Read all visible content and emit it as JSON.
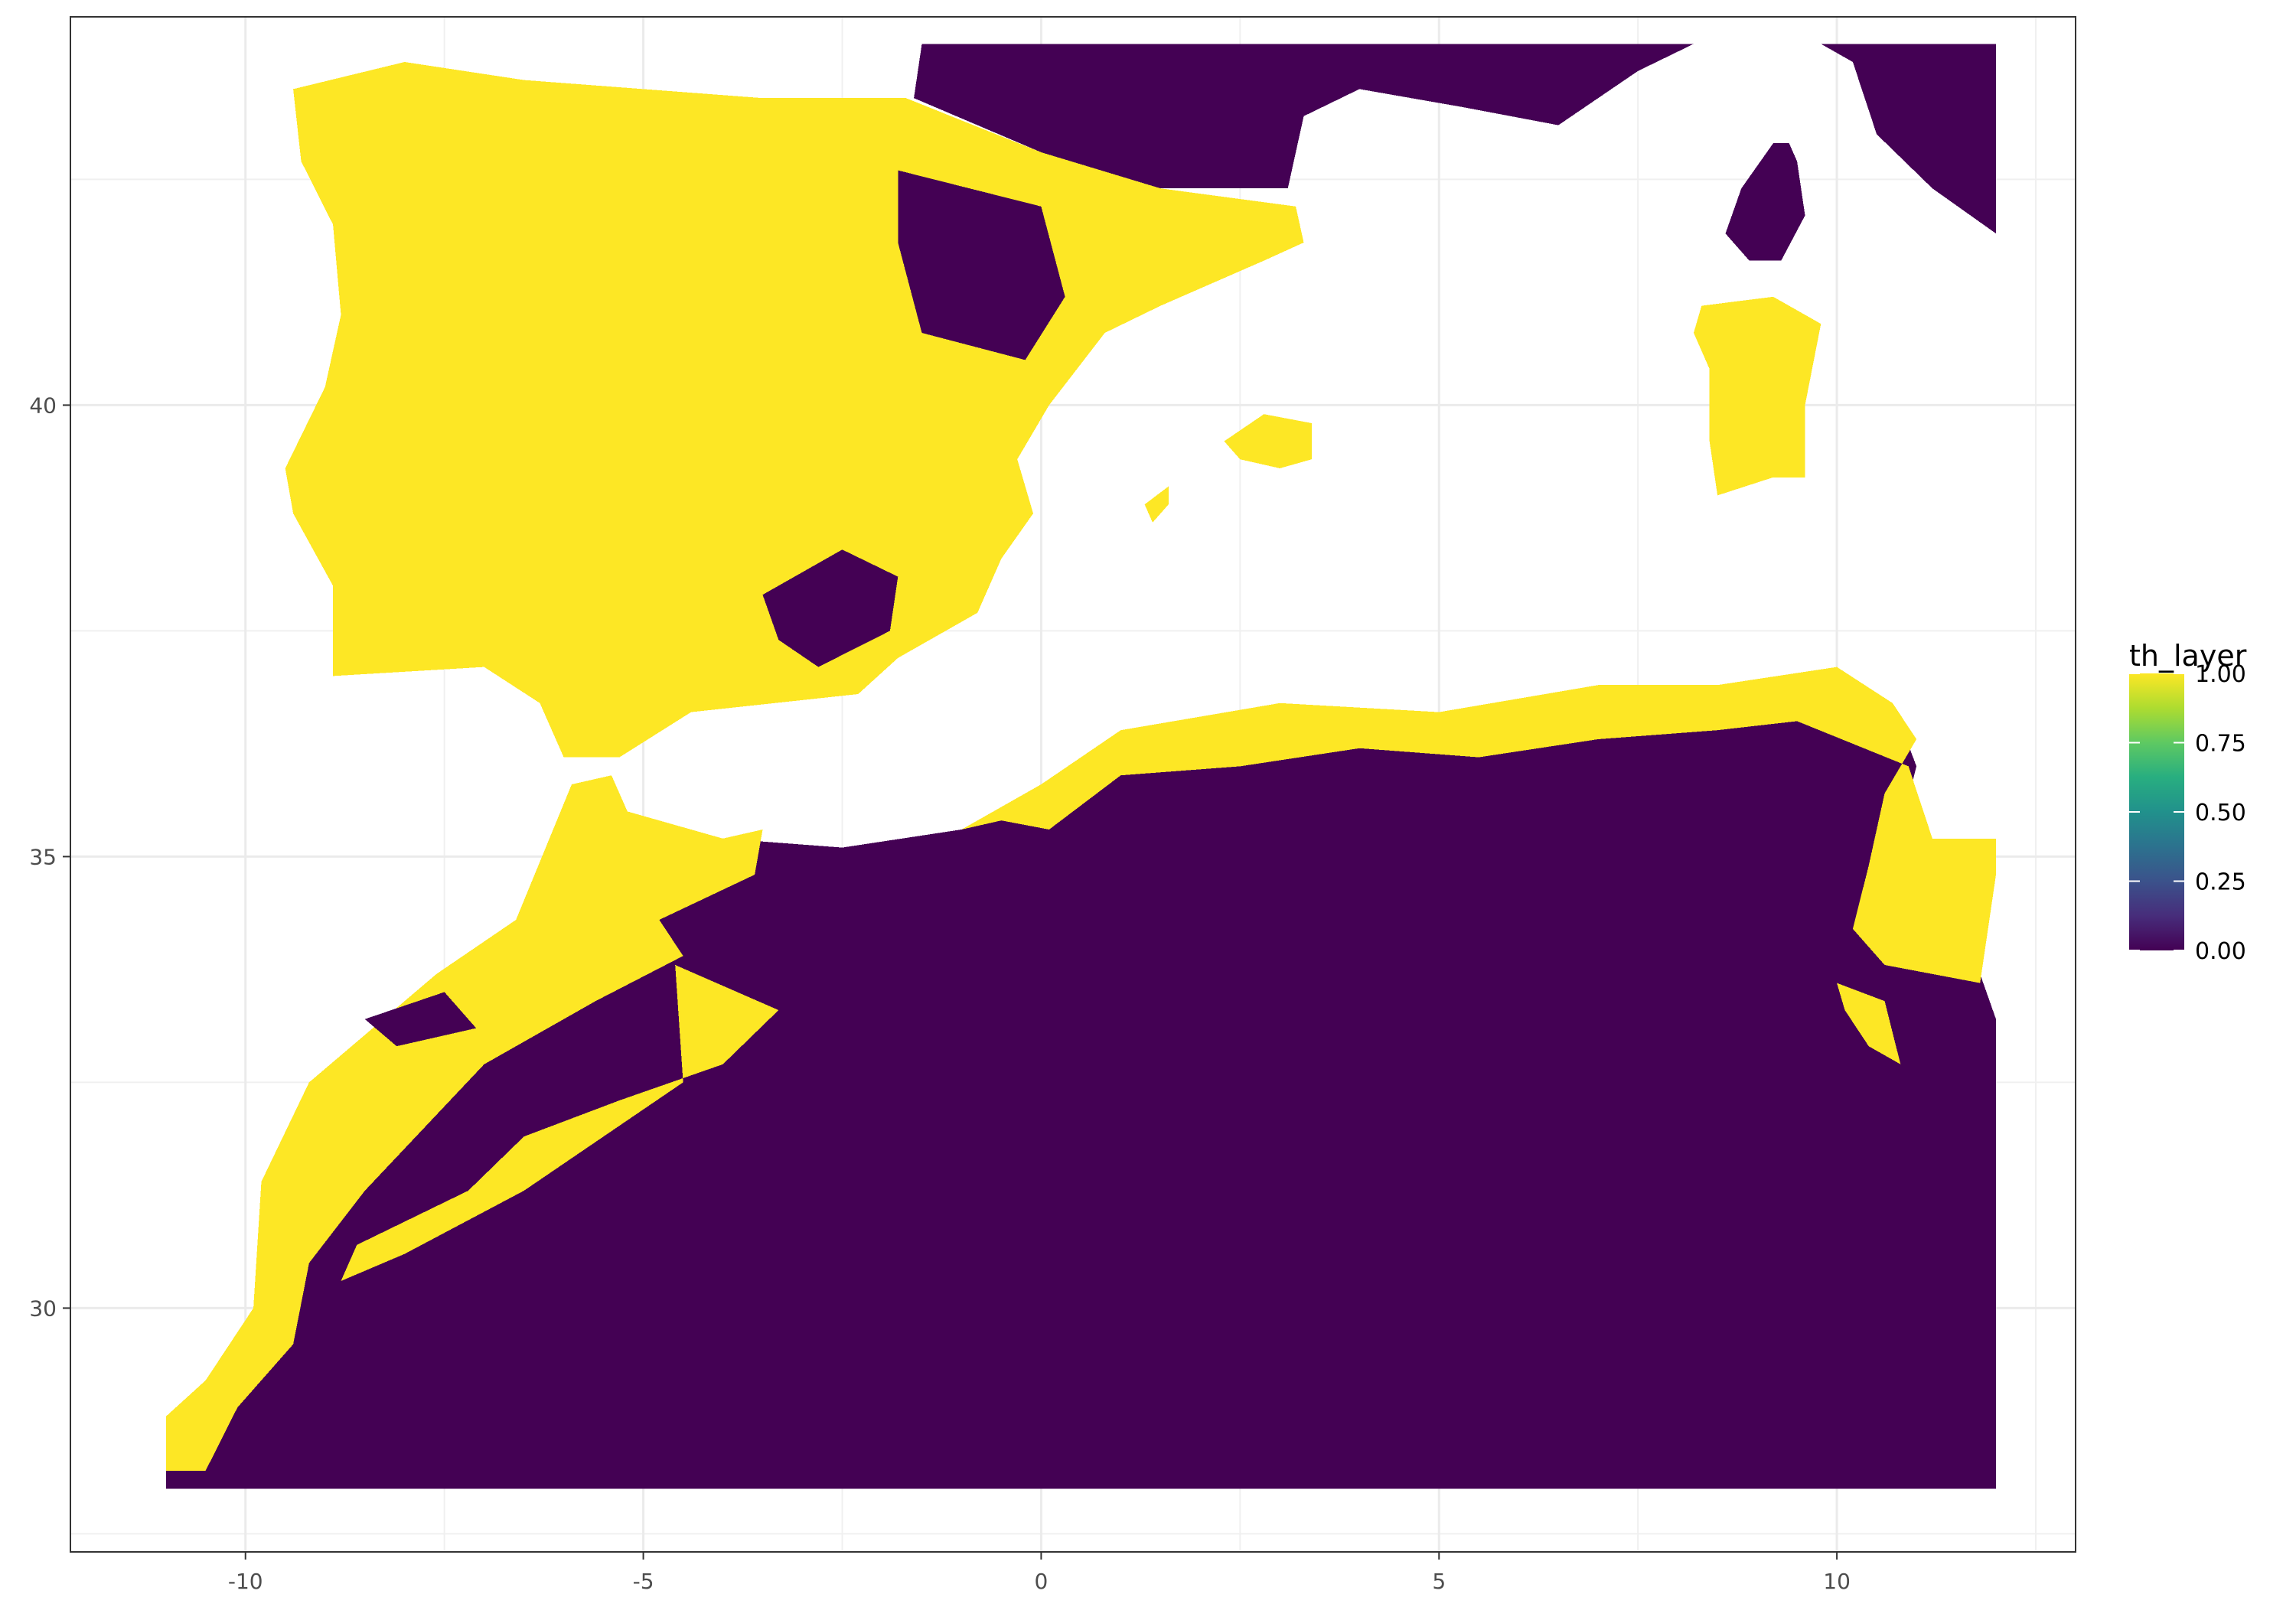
{
  "chart_data": {
    "type": "heatmap",
    "title": "",
    "xlabel": "",
    "ylabel": "",
    "xlim": [
      -12.2,
      13.0
    ],
    "ylim": [
      27.3,
      44.3
    ],
    "x_ticks": [
      {
        "value": -10,
        "label": "-10"
      },
      {
        "value": -5,
        "label": "-5"
      },
      {
        "value": 0,
        "label": "0"
      },
      {
        "value": 5,
        "label": "5"
      },
      {
        "value": 10,
        "label": "10"
      }
    ],
    "y_ticks": [
      {
        "value": 30,
        "label": "30"
      },
      {
        "value": 35,
        "label": "35"
      },
      {
        "value": 40,
        "label": "40"
      }
    ],
    "grid": true,
    "raster_extent": {
      "lon_min": -11.0,
      "lon_max": 12.0,
      "lat_min": 28.0,
      "lat_max": 44.0
    },
    "value_range": [
      0,
      1
    ],
    "colorscale": "viridis",
    "colors": {
      "low": "#440154",
      "high": "#fde725",
      "na": "#ffffff"
    },
    "legend": {
      "title": "th_layer",
      "position": "right",
      "breaks": [
        {
          "value": 1.0,
          "label": "1.00"
        },
        {
          "value": 0.75,
          "label": "0.75"
        },
        {
          "value": 0.5,
          "label": "0.50"
        },
        {
          "value": 0.25,
          "label": "0.25"
        },
        {
          "value": 0.0,
          "label": "0.00"
        }
      ]
    },
    "regions": [
      {
        "name": "north-africa",
        "value": 0,
        "lonlat": [
          [
            -11,
            28
          ],
          [
            12,
            28
          ],
          [
            12,
            33.2
          ],
          [
            11.8,
            33.7
          ],
          [
            11.2,
            34.3
          ],
          [
            10.8,
            35.3
          ],
          [
            11,
            36
          ],
          [
            10.7,
            36.7
          ],
          [
            10,
            37.1
          ],
          [
            8.5,
            36.9
          ],
          [
            7,
            36.9
          ],
          [
            5,
            36.6
          ],
          [
            3,
            36.7
          ],
          [
            1,
            36.4
          ],
          [
            0,
            35.8
          ],
          [
            -1,
            35.3
          ],
          [
            -2.5,
            35.1
          ],
          [
            -4,
            35.2
          ],
          [
            -5,
            35.2
          ],
          [
            -5.9,
            35.8
          ],
          [
            -6.6,
            34.3
          ],
          [
            -7.6,
            33.7
          ],
          [
            -9.2,
            32.5
          ],
          [
            -9.8,
            31.4
          ],
          [
            -9.9,
            30
          ],
          [
            -10.5,
            29.2
          ],
          [
            -11,
            28.8
          ]
        ]
      },
      {
        "name": "iberia",
        "value": 1,
        "lonlat": [
          [
            -9.4,
            43.5
          ],
          [
            -8,
            43.8
          ],
          [
            -6.5,
            43.6
          ],
          [
            -5,
            43.5
          ],
          [
            -3.5,
            43.4
          ],
          [
            -1.7,
            43.4
          ],
          [
            0,
            42.8
          ],
          [
            1.5,
            42.4
          ],
          [
            3.2,
            42.2
          ],
          [
            3.3,
            41.8
          ],
          [
            2.8,
            41.6
          ],
          [
            1.5,
            41.1
          ],
          [
            0.8,
            40.8
          ],
          [
            0.1,
            40
          ],
          [
            -0.3,
            39.4
          ],
          [
            -0.1,
            38.8
          ],
          [
            -0.5,
            38.3
          ],
          [
            -0.8,
            37.7
          ],
          [
            -1.8,
            37.2
          ],
          [
            -2.3,
            36.8
          ],
          [
            -4.4,
            36.6
          ],
          [
            -5.3,
            36.1
          ],
          [
            -6,
            36.1
          ],
          [
            -6.3,
            36.7
          ],
          [
            -7,
            37.1
          ],
          [
            -8.9,
            37
          ],
          [
            -8.9,
            38
          ],
          [
            -9.4,
            38.8
          ],
          [
            -9.5,
            39.3
          ],
          [
            -9,
            40.2
          ],
          [
            -8.8,
            41
          ],
          [
            -8.9,
            42
          ],
          [
            -9.3,
            42.7
          ]
        ]
      },
      {
        "name": "france-south",
        "value": 0,
        "lonlat": [
          [
            -1.6,
            43.4
          ],
          [
            -1.5,
            44
          ],
          [
            8.2,
            44
          ],
          [
            7.5,
            43.7
          ],
          [
            6.5,
            43.1
          ],
          [
            5.3,
            43.3
          ],
          [
            4,
            43.5
          ],
          [
            3.3,
            43.2
          ],
          [
            3.1,
            42.4
          ],
          [
            1.5,
            42.4
          ],
          [
            0,
            42.8
          ]
        ]
      },
      {
        "name": "italy-nw",
        "value": 0,
        "lonlat": [
          [
            9.8,
            44
          ],
          [
            12,
            44
          ],
          [
            12,
            41.9
          ],
          [
            11.2,
            42.4
          ],
          [
            10.5,
            43
          ],
          [
            10.2,
            43.8
          ]
        ]
      },
      {
        "name": "corsica",
        "value": 0,
        "lonlat": [
          [
            9.4,
            42.9
          ],
          [
            9.5,
            42.7
          ],
          [
            9.6,
            42.1
          ],
          [
            9.3,
            41.6
          ],
          [
            8.9,
            41.6
          ],
          [
            8.6,
            41.9
          ],
          [
            8.8,
            42.4
          ],
          [
            9.2,
            42.9
          ]
        ]
      },
      {
        "name": "sardinia",
        "value": 1,
        "lonlat": [
          [
            8.3,
            41.1
          ],
          [
            9.2,
            41.2
          ],
          [
            9.8,
            40.9
          ],
          [
            9.6,
            40
          ],
          [
            9.6,
            39.2
          ],
          [
            9.2,
            39.2
          ],
          [
            8.5,
            39
          ],
          [
            8.4,
            39.6
          ],
          [
            8.4,
            40.4
          ],
          [
            8.2,
            40.8
          ]
        ]
      },
      {
        "name": "mallorca",
        "value": 1,
        "lonlat": [
          [
            2.3,
            39.6
          ],
          [
            2.8,
            39.9
          ],
          [
            3.4,
            39.8
          ],
          [
            3.4,
            39.4
          ],
          [
            3,
            39.3
          ],
          [
            2.5,
            39.4
          ]
        ]
      },
      {
        "name": "ibiza",
        "value": 1,
        "lonlat": [
          [
            1.3,
            38.9
          ],
          [
            1.6,
            39.1
          ],
          [
            1.6,
            38.9
          ],
          [
            1.4,
            38.7
          ]
        ]
      },
      {
        "name": "morocco-north-coast",
        "value": 1,
        "lonlat": [
          [
            -5.9,
            35.8
          ],
          [
            -5.4,
            35.9
          ],
          [
            -5.2,
            35.5
          ],
          [
            -4,
            35.2
          ],
          [
            -3.5,
            35.3
          ],
          [
            -3.6,
            34.8
          ],
          [
            -4.8,
            34.3
          ],
          [
            -4.5,
            33.9
          ],
          [
            -5.6,
            33.4
          ],
          [
            -7,
            32.7
          ],
          [
            -8.5,
            31.3
          ],
          [
            -9.2,
            30.5
          ],
          [
            -9.4,
            29.6
          ],
          [
            -10.1,
            28.9
          ],
          [
            -10.5,
            28.2
          ],
          [
            -11,
            28.2
          ],
          [
            -11,
            28.8
          ],
          [
            -10.5,
            29.2
          ],
          [
            -9.9,
            30
          ],
          [
            -9.8,
            31.4
          ],
          [
            -9.2,
            32.5
          ],
          [
            -7.6,
            33.7
          ],
          [
            -6.6,
            34.3
          ]
        ]
      },
      {
        "name": "algeria-tunisia-coast",
        "value": 1,
        "lonlat": [
          [
            -1,
            35.3
          ],
          [
            0,
            35.8
          ],
          [
            1,
            36.4
          ],
          [
            3,
            36.7
          ],
          [
            5,
            36.6
          ],
          [
            7,
            36.9
          ],
          [
            8.5,
            36.9
          ],
          [
            10,
            37.1
          ],
          [
            10.7,
            36.7
          ],
          [
            11,
            36.3
          ],
          [
            10.6,
            35.7
          ],
          [
            10.4,
            34.9
          ],
          [
            10.2,
            34.2
          ],
          [
            10.6,
            33.8
          ],
          [
            11.8,
            33.6
          ],
          [
            12,
            34.8
          ],
          [
            12,
            35.2
          ],
          [
            11.2,
            35.2
          ],
          [
            10.9,
            36
          ],
          [
            9.5,
            36.5
          ],
          [
            8.5,
            36.4
          ],
          [
            7,
            36.3
          ],
          [
            5.5,
            36.1
          ],
          [
            4,
            36.2
          ],
          [
            2.5,
            36
          ],
          [
            1,
            35.9
          ],
          [
            0.1,
            35.3
          ],
          [
            -0.5,
            35.4
          ]
        ]
      },
      {
        "name": "atlas-highlands",
        "value": 1,
        "lonlat": [
          [
            -4.6,
            33.8
          ],
          [
            -3.3,
            33.3
          ],
          [
            -4,
            32.7
          ],
          [
            -5.3,
            32.3
          ],
          [
            -6.5,
            31.9
          ],
          [
            -7.2,
            31.3
          ],
          [
            -8.6,
            30.7
          ],
          [
            -8.8,
            30.3
          ],
          [
            -8,
            30.6
          ],
          [
            -6.5,
            31.3
          ],
          [
            -5.5,
            31.9
          ],
          [
            -4.5,
            32.5
          ]
        ]
      },
      {
        "name": "tunisia-inland",
        "value": 1,
        "lonlat": [
          [
            10,
            33.6
          ],
          [
            10.6,
            33.4
          ],
          [
            10.8,
            32.7
          ],
          [
            10.4,
            32.9
          ],
          [
            10.1,
            33.3
          ]
        ]
      }
    ],
    "patches": [
      {
        "name": "iberia-interior-east",
        "value": 0,
        "lonlat": [
          [
            -1.8,
            42.6
          ],
          [
            0,
            42.2
          ],
          [
            0.3,
            41.2
          ],
          [
            -0.2,
            40.5
          ],
          [
            -1.5,
            40.8
          ],
          [
            -1.8,
            41.8
          ]
        ]
      },
      {
        "name": "iberia-southeast",
        "value": 0,
        "lonlat": [
          [
            -3.5,
            37.9
          ],
          [
            -2.5,
            38.4
          ],
          [
            -1.8,
            38.1
          ],
          [
            -1.9,
            37.5
          ],
          [
            -2.8,
            37.1
          ],
          [
            -3.3,
            37.4
          ]
        ]
      },
      {
        "name": "rif-patch",
        "value": 0,
        "lonlat": [
          [
            -8.5,
            33.2
          ],
          [
            -7.5,
            33.5
          ],
          [
            -7.1,
            33.1
          ],
          [
            -8.1,
            32.9
          ]
        ]
      }
    ]
  }
}
